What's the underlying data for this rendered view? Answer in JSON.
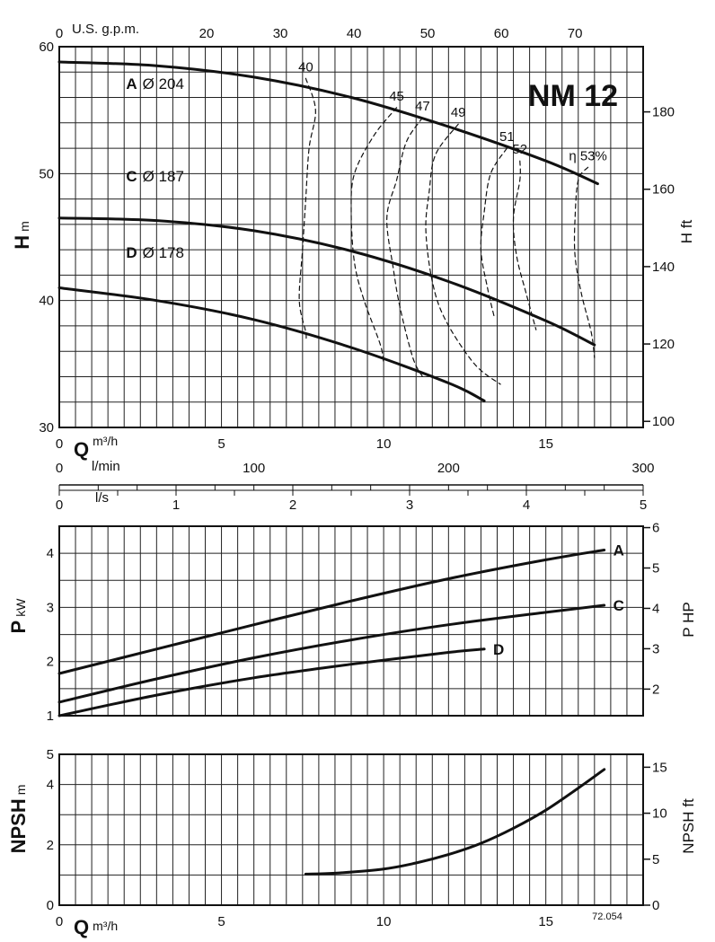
{
  "chart_data": [
    {
      "type": "line",
      "model": "NM 12",
      "x_label_bold": "Q",
      "x_unit": "m³/h",
      "y_label_bold": "H",
      "y_unit": "m",
      "y2_label": "H ft",
      "gpm_label": "U.S. g.p.m.",
      "lmin_label": "l/min",
      "ls_label": "l/s",
      "xlim": [
        0,
        18
      ],
      "ylim": [
        30,
        60
      ],
      "x_ticks": [
        0,
        5,
        10,
        15
      ],
      "y_ticks": [
        30,
        40,
        50,
        60
      ],
      "y2_ticks": [
        100,
        120,
        140,
        160,
        180
      ],
      "gpm_ticks": [
        0,
        20,
        30,
        40,
        50,
        60,
        70
      ],
      "lmin_ticks": [
        0,
        100,
        200,
        300
      ],
      "ls_ticks": [
        0,
        1,
        2,
        3,
        4,
        5
      ],
      "grid": true,
      "series": [
        {
          "name": "A",
          "diameter_label": "Ø 204",
          "x": [
            0,
            3,
            6,
            9,
            12,
            15,
            16.6
          ],
          "y": [
            58.8,
            58.5,
            57.6,
            56.0,
            53.7,
            51.0,
            49.2
          ]
        },
        {
          "name": "C",
          "diameter_label": "Ø 187",
          "x": [
            0,
            3,
            6,
            9,
            12,
            15,
            16.5
          ],
          "y": [
            46.5,
            46.3,
            45.5,
            43.9,
            41.5,
            38.4,
            36.5
          ]
        },
        {
          "name": "D",
          "diameter_label": "Ø 178",
          "x": [
            0,
            3,
            6,
            9,
            12,
            13.1
          ],
          "y": [
            41.0,
            40.0,
            38.5,
            36.3,
            33.5,
            32.1
          ]
        }
      ],
      "efficiency_label_prefix": "η",
      "efficiency_curves": [
        {
          "label": "40",
          "x": [
            7.6,
            7.9,
            7.7,
            7.6,
            7.5,
            7.4,
            7.6,
            7.6
          ],
          "y": [
            57.5,
            55,
            52,
            48,
            44,
            40,
            37.5,
            36.8
          ]
        },
        {
          "label": "45",
          "x": [
            10.4,
            9.7,
            9.1,
            9.0,
            9.1,
            9.4,
            9.9,
            10.0
          ],
          "y": [
            55.2,
            53,
            50,
            47,
            43,
            40,
            36.5,
            35.0
          ]
        },
        {
          "label": "47",
          "x": [
            11.2,
            10.7,
            10.4,
            10.1,
            10.3,
            10.5,
            10.9,
            11.2
          ],
          "y": [
            54.4,
            52.5,
            49.5,
            46.5,
            42.5,
            39.5,
            35.5,
            34.0
          ]
        },
        {
          "label": "49",
          "x": [
            12.3,
            11.6,
            11.4,
            11.3,
            11.5,
            11.9,
            12.8,
            13.6
          ],
          "y": [
            53.9,
            51.5,
            48.5,
            45.5,
            41.5,
            38.5,
            35.0,
            33.4
          ]
        },
        {
          "label": "51",
          "x": [
            13.8,
            13.3,
            13.1,
            13.0,
            13.2,
            13.4
          ],
          "y": [
            52.0,
            50,
            47,
            44,
            41,
            38.8
          ]
        },
        {
          "label": "52",
          "x": [
            14.2,
            14.2,
            14.0,
            14.1,
            14.4,
            14.7
          ],
          "y": [
            51.0,
            49.5,
            46.5,
            43.5,
            40.5,
            37.7
          ]
        },
        {
          "label": "53%",
          "x": [
            16.3,
            16.0,
            15.9,
            15.9,
            16.1,
            16.4,
            16.5
          ],
          "y": [
            50.5,
            49.5,
            46.5,
            43.5,
            40.5,
            37.5,
            35.5
          ]
        }
      ],
      "code": "72.054"
    },
    {
      "type": "line",
      "y_label_bold": "P",
      "y_unit": "kW",
      "y2_label": "P HP",
      "xlim": [
        0,
        18
      ],
      "ylim": [
        1,
        4.5
      ],
      "y_ticks": [
        1,
        2,
        3,
        4
      ],
      "y2_ticks": [
        2,
        3,
        4,
        5,
        6
      ],
      "grid": true,
      "series": [
        {
          "name": "A",
          "x": [
            0,
            3,
            6,
            9,
            12,
            15,
            16.8
          ],
          "y": [
            1.78,
            2.23,
            2.68,
            3.12,
            3.53,
            3.88,
            4.06
          ]
        },
        {
          "name": "C",
          "x": [
            0,
            3,
            6,
            9,
            12,
            15,
            16.8
          ],
          "y": [
            1.25,
            1.68,
            2.07,
            2.4,
            2.68,
            2.91,
            3.04
          ]
        },
        {
          "name": "D",
          "x": [
            0,
            3,
            6,
            9,
            12,
            13.1
          ],
          "y": [
            1.0,
            1.38,
            1.7,
            1.95,
            2.17,
            2.23
          ]
        }
      ]
    },
    {
      "type": "line",
      "y_label_bold": "NPSH",
      "y_unit": "m",
      "y2_label": "NPSH ft",
      "x_label_bold": "Q",
      "x_unit": "m³/h",
      "xlim": [
        0,
        18
      ],
      "ylim": [
        0,
        5
      ],
      "x_ticks": [
        0,
        5,
        10,
        15
      ],
      "y_ticks": [
        0,
        2,
        4,
        5
      ],
      "y2_ticks": [
        0,
        5,
        10,
        15
      ],
      "grid": true,
      "series": [
        {
          "name": "",
          "x": [
            7.6,
            8.5,
            10.0,
            11.0,
            12.0,
            13.0,
            14.0,
            15.0,
            16.0,
            16.8
          ],
          "y": [
            1.03,
            1.06,
            1.2,
            1.4,
            1.68,
            2.05,
            2.55,
            3.15,
            3.88,
            4.5
          ]
        }
      ]
    }
  ]
}
